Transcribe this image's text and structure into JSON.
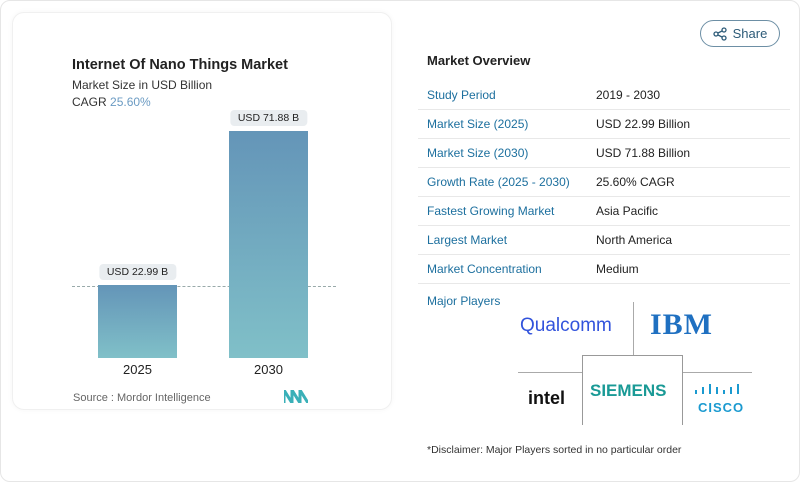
{
  "share_label": "Share",
  "chart_data": {
    "type": "bar",
    "title": "Internet Of Nano Things Market",
    "subtitle": "Market Size in USD Billion",
    "cagr_label": "CAGR",
    "cagr_value": "25.60%",
    "categories": [
      "2025",
      "2030"
    ],
    "values": [
      22.99,
      71.88
    ],
    "data_labels": [
      "USD 22.99 B",
      "USD 71.88 B"
    ],
    "source": "Source :  Mordor Intelligence",
    "colors": {
      "bar_top": "#6495b8",
      "bar_bottom": "#80c0c8",
      "cagr": "#6b9bc3"
    }
  },
  "overview": {
    "title": "Market Overview",
    "rows": [
      {
        "label": "Study Period",
        "value": "2019 - 2030"
      },
      {
        "label": "Market Size (2025)",
        "value": "USD 22.99 Billion"
      },
      {
        "label": "Market Size (2030)",
        "value": "USD 71.88 Billion"
      },
      {
        "label": "Growth Rate (2025 - 2030)",
        "value": "25.60% CAGR"
      },
      {
        "label": "Fastest Growing Market",
        "value": "Asia Pacific"
      },
      {
        "label": "Largest Market",
        "value": "North America"
      },
      {
        "label": "Market Concentration",
        "value": "Medium"
      }
    ],
    "major_players_label": "Major Players",
    "players": [
      "Qualcomm",
      "IBM",
      "intel",
      "SIEMENS",
      "CISCO"
    ],
    "disclaimer": "*Disclaimer: Major Players sorted in no particular order"
  }
}
